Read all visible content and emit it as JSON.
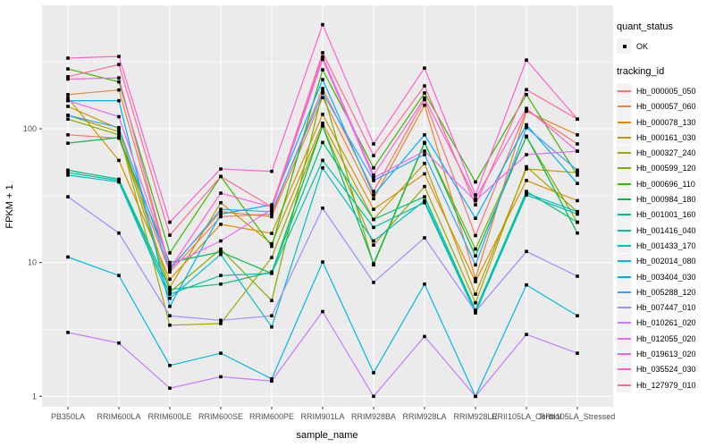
{
  "chart_data": {
    "type": "line",
    "title": "",
    "xlabel": "sample_name",
    "ylabel": "FPKM + 1",
    "y_scale": "log10",
    "y_ticks": [
      1,
      10,
      100
    ],
    "y_minor_ticks": [
      3.1623,
      31.623,
      316.23
    ],
    "ylim": [
      0.85,
      840
    ],
    "grid": "on",
    "panel_bg": "#EBEBEB",
    "gridline_color": "#FFFFFF",
    "tick_label_color": "#4D4D4D",
    "point_color": "#000000",
    "legend_position": "right",
    "categories": [
      "PB350LA",
      "RRIM600LA",
      "RRIM600LE",
      "RRIM600SE",
      "RRIM600PE",
      "RRIM901LA",
      "RRIM928BA",
      "RRIM928LA",
      "RRIM928LE",
      "RRII105LA_Control",
      "RRII105LA_Stressed"
    ],
    "legend": {
      "quant_status_title": "quant_status",
      "ok_label": "OK",
      "tracking_title": "tracking_id"
    },
    "series": [
      {
        "name": "Hb_000005_050",
        "color": "#F8766D",
        "values": [
          90,
          85,
          8.5,
          22,
          23,
          200,
          34,
          165,
          15.9,
          138,
          77
        ]
      },
      {
        "name": "Hb_000057_060",
        "color": "#EA8331",
        "values": [
          180,
          195,
          9.0,
          24,
          22,
          171,
          30,
          150,
          7.6,
          135,
          90
        ]
      },
      {
        "name": "Hb_000078_130",
        "color": "#D89000",
        "values": [
          170,
          58,
          7.5,
          19.3,
          16.5,
          128,
          25,
          46,
          7.2,
          41,
          29
        ]
      },
      {
        "name": "Hb_000161_030",
        "color": "#C09B00",
        "values": [
          147,
          100,
          6.5,
          28,
          13.8,
          110,
          21,
          55,
          5.8,
          50,
          47
        ]
      },
      {
        "name": "Hb_000327_240",
        "color": "#A3A500",
        "values": [
          126,
          95,
          3.4,
          3.5,
          10.9,
          105,
          13.5,
          37,
          5.0,
          52,
          24
        ]
      },
      {
        "name": "Hb_000599_120",
        "color": "#7CAE00",
        "values": [
          118,
          90,
          6.0,
          12.6,
          5.2,
          190,
          9.6,
          78,
          12.6,
          87,
          20
        ]
      },
      {
        "name": "Hb_000696_110",
        "color": "#39B600",
        "values": [
          280,
          224,
          11.8,
          44,
          13.2,
          276,
          51,
          185,
          40,
          180,
          45
        ]
      },
      {
        "name": "Hb_000984_180",
        "color": "#00BB4E",
        "values": [
          78,
          86,
          10,
          12,
          8.3,
          105,
          9.8,
          79,
          11.2,
          88,
          16.6
        ]
      },
      {
        "name": "Hb_001001_160",
        "color": "#00BF7D",
        "values": [
          49,
          42,
          6.3,
          6.9,
          8.5,
          79,
          21,
          31,
          4.4,
          34,
          20
        ]
      },
      {
        "name": "Hb_001416_040",
        "color": "#00C1A3",
        "values": [
          47,
          41,
          5.8,
          8.0,
          8.3,
          58,
          18.3,
          28,
          4.2,
          32,
          23
        ]
      },
      {
        "name": "Hb_001433_170",
        "color": "#00BFC4",
        "values": [
          45,
          40,
          5.4,
          11.5,
          3.3,
          51,
          14.5,
          29,
          4.3,
          33,
          24
        ]
      },
      {
        "name": "Hb_002014_080",
        "color": "#00BADE",
        "values": [
          11,
          8.0,
          1.7,
          2.1,
          1.35,
          10.1,
          1.5,
          6.9,
          1.0,
          6.8,
          4.0
        ]
      },
      {
        "name": "Hb_003404_030",
        "color": "#00B0F6",
        "values": [
          162,
          162,
          4.7,
          23,
          27,
          233,
          32,
          90,
          21.4,
          107,
          39
        ]
      },
      {
        "name": "Hb_005288_120",
        "color": "#35A2FF",
        "values": [
          126,
          102,
          8.8,
          25,
          24,
          185,
          41,
          64,
          9.6,
          102,
          49
        ]
      },
      {
        "name": "Hb_007447_010",
        "color": "#9590FF",
        "values": [
          31,
          16.6,
          4.0,
          3.7,
          4.0,
          25.5,
          7.1,
          15.3,
          4.3,
          12.1,
          7.9
        ]
      },
      {
        "name": "Hb_010261_020",
        "color": "#C77CFF",
        "values": [
          3.0,
          2.5,
          1.15,
          1.4,
          1.3,
          4.3,
          1.0,
          2.8,
          1.0,
          2.9,
          2.1
        ]
      },
      {
        "name": "Hb_012055_020",
        "color": "#E76BF3",
        "values": [
          162,
          123,
          9.5,
          14.5,
          25,
          330,
          43,
          68,
          29,
          64,
          68
        ]
      },
      {
        "name": "Hb_019613_020",
        "color": "#FA62DB",
        "values": [
          235,
          240,
          9.0,
          33,
          26,
          345,
          45,
          170,
          30,
          142,
          68
        ]
      },
      {
        "name": "Hb_035524_030",
        "color": "#FF61CC",
        "values": [
          337,
          347,
          20,
          50,
          48,
          600,
          77,
          284,
          32,
          326,
          118
        ]
      },
      {
        "name": "Hb_127979_010",
        "color": "#FF6A98",
        "values": [
          245,
          302,
          16,
          44,
          26,
          370,
          63,
          209,
          27,
          196,
          118
        ]
      }
    ]
  }
}
